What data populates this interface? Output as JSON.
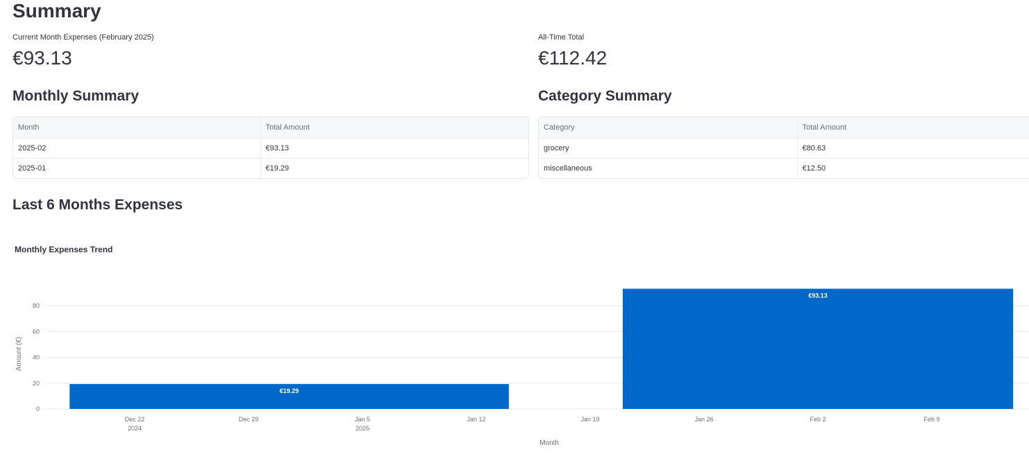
{
  "page": {
    "title": "Summary"
  },
  "metrics": {
    "current_month_label": "Current Month Expenses (February 2025)",
    "current_month_value": "€93.13",
    "all_time_label": "All-Time Total",
    "all_time_value": "€112.42"
  },
  "monthly_summary": {
    "title": "Monthly Summary",
    "columns": [
      "Month",
      "Total Amount"
    ],
    "rows": [
      [
        "2025-02",
        "€93.13"
      ],
      [
        "2025-01",
        "€19.29"
      ]
    ]
  },
  "category_summary": {
    "title": "Category Summary",
    "columns": [
      "Category",
      "Total Amount"
    ],
    "rows": [
      [
        "grocery",
        "€80.63"
      ],
      [
        "miscellaneous",
        "€12.50"
      ]
    ]
  },
  "chart_section": {
    "title": "Last 6 Months Expenses"
  },
  "chart_data": {
    "type": "bar",
    "title": "Monthly Expenses Trend",
    "xlabel": "Month",
    "ylabel": "Amount (€)",
    "ylim": [
      0,
      100
    ],
    "yticks": [
      0,
      20,
      40,
      60,
      80
    ],
    "grid": true,
    "color": "#0068c9",
    "x_axis": {
      "type": "date",
      "range": [
        "2024-12-15",
        "2025-02-14"
      ],
      "ticks": [
        {
          "date": "2024-12-22",
          "label": "Dec 22",
          "sublabel": "2024"
        },
        {
          "date": "2024-12-29",
          "label": "Dec 29",
          "sublabel": ""
        },
        {
          "date": "2025-01-05",
          "label": "Jan 5",
          "sublabel": "2025"
        },
        {
          "date": "2025-01-12",
          "label": "Jan 12",
          "sublabel": ""
        },
        {
          "date": "2025-01-19",
          "label": "Jan 19",
          "sublabel": ""
        },
        {
          "date": "2025-01-26",
          "label": "Jan 26",
          "sublabel": ""
        },
        {
          "date": "2025-02-02",
          "label": "Feb 2",
          "sublabel": ""
        },
        {
          "date": "2025-02-09",
          "label": "Feb 9",
          "sublabel": ""
        }
      ]
    },
    "bars": [
      {
        "month": "2025-01",
        "start": "2024-12-18",
        "end": "2025-01-14",
        "value": 19.29,
        "label": "€19.29"
      },
      {
        "month": "2025-02",
        "start": "2025-01-21",
        "end": "2025-02-14",
        "value": 93.13,
        "label": "€93.13"
      }
    ]
  }
}
